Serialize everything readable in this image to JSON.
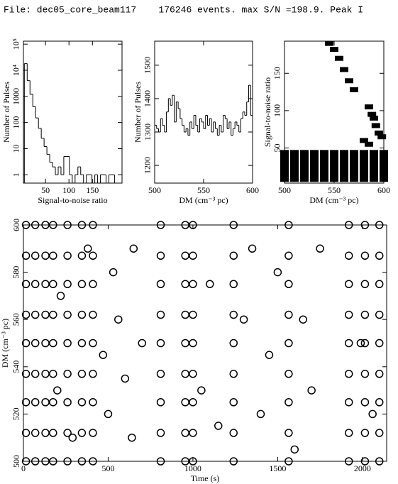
{
  "title": "File: dec05_core_beam117    176246 events. max S/N =198.9. Peak I",
  "chart_data": [
    {
      "type": "histogram",
      "xlabel": "Signal-to-noise ratio",
      "ylabel": "Number of Pulses",
      "log_y": true,
      "color": "#000000",
      "bins": [
        5,
        11,
        17,
        23,
        29,
        35,
        41,
        47,
        53,
        59,
        65,
        71,
        77,
        83,
        89,
        95,
        101,
        107,
        113,
        119,
        125,
        131,
        137,
        143,
        149,
        155,
        161,
        167,
        173,
        179,
        185,
        191,
        197
      ],
      "values": [
        18000,
        4000,
        1200,
        400,
        150,
        60,
        25,
        12,
        6,
        3,
        2,
        1,
        2,
        1,
        5,
        5,
        1,
        0,
        1,
        2,
        1,
        0,
        1,
        1,
        0,
        1,
        0,
        1,
        1,
        0,
        1,
        1
      ],
      "xlim": [
        3,
        213
      ],
      "xticks": [
        50,
        100,
        150
      ],
      "ylim": [
        0.48,
        130000
      ],
      "yticks": [
        1,
        10,
        100,
        1000,
        {
          "value": 10000,
          "label": "10⁴"
        },
        {
          "value": 100000,
          "label": "10⁵"
        }
      ]
    },
    {
      "type": "histogram",
      "xlabel": "DM (cm⁻³ pc)",
      "ylabel": "Number of Pulses",
      "log_y": false,
      "color": "#000000",
      "bins": [
        500,
        502,
        504,
        506,
        508,
        510,
        512,
        514,
        516,
        518,
        520,
        522,
        524,
        526,
        528,
        530,
        532,
        534,
        536,
        538,
        540,
        542,
        544,
        546,
        548,
        550,
        552,
        554,
        556,
        558,
        560,
        562,
        564,
        566,
        568,
        570,
        572,
        574,
        576,
        578,
        580,
        582,
        584,
        586,
        588,
        590,
        592,
        594,
        596,
        598,
        600
      ],
      "values": [
        1320,
        1310,
        1300,
        1340,
        1320,
        1300,
        1360,
        1400,
        1380,
        1410,
        1330,
        1390,
        1370,
        1340,
        1320,
        1300,
        1310,
        1290,
        1330,
        1310,
        1350,
        1320,
        1300,
        1340,
        1330,
        1310,
        1350,
        1320,
        1340,
        1300,
        1330,
        1310,
        1290,
        1320,
        1300,
        1350,
        1340,
        1310,
        1330,
        1290,
        1310,
        1330,
        1320,
        1300,
        1340,
        1360,
        1350,
        1390,
        1440,
        1350
      ],
      "xlim": [
        500,
        600
      ],
      "xticks": [
        500,
        550,
        600
      ],
      "ylim": [
        1147,
        1572
      ],
      "yticks": [
        1200,
        1300,
        1400,
        1500
      ]
    },
    {
      "type": "scatter",
      "xlabel": "DM (cm⁻³ pc)",
      "ylabel": "Signal-to-noise ratio",
      "marker": "dash",
      "color": "#000000",
      "x": [
        500,
        510,
        520,
        530,
        540,
        550,
        560,
        570,
        580,
        590,
        600,
        500,
        510,
        520,
        530,
        540,
        550,
        560,
        570,
        580,
        590,
        600,
        500,
        510,
        520,
        530,
        540,
        550,
        560,
        570,
        580,
        590,
        600,
        500,
        510,
        520,
        530,
        540,
        550,
        560,
        570,
        580,
        590,
        600,
        500,
        510,
        520,
        530,
        540,
        550,
        560,
        570,
        580,
        590,
        600,
        500,
        510,
        520,
        530,
        540,
        550,
        560,
        570,
        580,
        590,
        600,
        500,
        510,
        520,
        530,
        540,
        550,
        560,
        570,
        580,
        590,
        600,
        545,
        550,
        555,
        560,
        565,
        570,
        585,
        588,
        590,
        592,
        595,
        598,
        580,
        585
      ],
      "y": [
        8,
        8,
        8,
        8,
        8,
        8,
        8,
        8,
        8,
        8,
        8,
        14,
        14,
        14,
        14,
        14,
        14,
        14,
        14,
        14,
        14,
        14,
        20,
        20,
        20,
        20,
        20,
        20,
        20,
        20,
        20,
        20,
        20,
        26,
        26,
        26,
        26,
        26,
        26,
        26,
        26,
        26,
        26,
        26,
        32,
        32,
        32,
        32,
        32,
        32,
        32,
        32,
        32,
        32,
        32,
        38,
        38,
        38,
        38,
        38,
        38,
        38,
        38,
        38,
        38,
        38,
        44,
        44,
        44,
        44,
        44,
        44,
        44,
        44,
        44,
        44,
        44,
        190,
        182,
        170,
        155,
        140,
        128,
        105,
        95,
        90,
        80,
        70,
        65,
        60,
        55
      ],
      "xlim": [
        500,
        600
      ],
      "xticks": [
        500,
        550,
        600
      ],
      "ylim": [
        3,
        193
      ],
      "yticks": [
        50,
        100,
        150
      ]
    },
    {
      "type": "scatter",
      "xlabel": "Time (s)",
      "ylabel": "DM (cm⁻³ pc)",
      "marker": "circle",
      "color": "#000000",
      "x": [
        15,
        15,
        15,
        15,
        15,
        15,
        15,
        15,
        15,
        70,
        70,
        70,
        70,
        70,
        70,
        70,
        70,
        70,
        130,
        130,
        130,
        130,
        130,
        130,
        130,
        130,
        130,
        175,
        175,
        175,
        175,
        175,
        175,
        175,
        175,
        175,
        260,
        260,
        260,
        260,
        260,
        260,
        260,
        260,
        260,
        345,
        345,
        345,
        345,
        345,
        345,
        345,
        345,
        345,
        410,
        410,
        410,
        410,
        410,
        410,
        410,
        410,
        410,
        810,
        810,
        810,
        810,
        810,
        810,
        810,
        810,
        810,
        955,
        955,
        955,
        955,
        955,
        955,
        955,
        955,
        955,
        1000,
        1000,
        1000,
        1000,
        1000,
        1000,
        1000,
        1000,
        1000,
        1240,
        1240,
        1240,
        1240,
        1240,
        1240,
        1240,
        1240,
        1240,
        1565,
        1565,
        1565,
        1565,
        1565,
        1565,
        1565,
        1565,
        1565,
        1920,
        1920,
        1920,
        1920,
        1920,
        1920,
        1920,
        1920,
        1920,
        2015,
        2015,
        2015,
        2015,
        2015,
        2015,
        2015,
        2015,
        2015,
        2100,
        2100,
        2100,
        2100,
        2100,
        2100,
        2100,
        2100,
        2100,
        200,
        220,
        290,
        380,
        470,
        500,
        530,
        560,
        600,
        640,
        650,
        700,
        1050,
        1100,
        1150,
        1300,
        1350,
        1400,
        1450,
        1500,
        1600,
        1650,
        1700,
        1750,
        1990,
        2060
      ],
      "y": [
        500,
        512,
        525,
        537,
        550,
        562,
        575,
        587,
        600,
        500,
        512,
        525,
        537,
        550,
        562,
        575,
        587,
        600,
        500,
        512,
        525,
        537,
        550,
        562,
        575,
        587,
        600,
        500,
        512,
        525,
        537,
        550,
        562,
        575,
        587,
        600,
        500,
        512,
        525,
        537,
        550,
        562,
        575,
        587,
        600,
        500,
        512,
        525,
        537,
        550,
        562,
        575,
        587,
        600,
        500,
        512,
        525,
        537,
        550,
        562,
        575,
        587,
        600,
        500,
        512,
        525,
        537,
        550,
        562,
        575,
        587,
        600,
        500,
        512,
        525,
        537,
        550,
        562,
        575,
        587,
        600,
        500,
        512,
        525,
        537,
        550,
        562,
        575,
        587,
        600,
        500,
        512,
        525,
        537,
        550,
        562,
        575,
        587,
        600,
        500,
        512,
        525,
        537,
        550,
        562,
        575,
        587,
        600,
        500,
        512,
        525,
        537,
        550,
        562,
        575,
        587,
        600,
        500,
        512,
        525,
        537,
        550,
        562,
        575,
        587,
        600,
        500,
        512,
        525,
        537,
        550,
        562,
        575,
        587,
        600,
        530,
        570,
        510,
        590,
        545,
        520,
        580,
        560,
        535,
        510,
        590,
        550,
        530,
        575,
        515,
        560,
        590,
        520,
        545,
        580,
        505,
        560,
        530,
        590,
        550,
        520
      ],
      "xlim": [
        0,
        2143
      ],
      "xticks": [
        0,
        500,
        1000,
        1500,
        2000
      ],
      "ylim": [
        500,
        600
      ],
      "yticks": [
        500,
        520,
        540,
        560,
        580,
        600
      ]
    }
  ]
}
